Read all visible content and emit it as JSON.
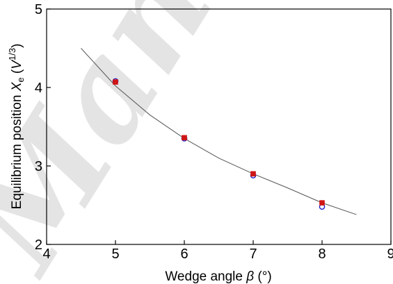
{
  "watermark": {
    "text": "Manuscript",
    "color": "#c8c8c8"
  },
  "chart_data": {
    "type": "scatter",
    "xlabel": "Wedge angle  β  (°)",
    "ylabel": "Equilibrium position  Xe  (V1/3)",
    "xlabel_parts": {
      "text": "Wedge angle  ",
      "symbol": "β",
      "unit": "  (°)"
    },
    "ylabel_parts": {
      "text": "Equilibrium position  ",
      "symbol": "X",
      "sub": "e",
      "unit_open": "  (",
      "unit_sym": "V",
      "unit_sup": "1/3",
      "unit_close": ")"
    },
    "xlim": [
      4,
      9
    ],
    "ylim": [
      2,
      5
    ],
    "xticks": [
      "4",
      "5",
      "6",
      "7",
      "8",
      "9"
    ],
    "yticks": [
      "2",
      "3",
      "4",
      "5"
    ],
    "grid": false,
    "series": [
      {
        "marker": "circle-open",
        "color": "#1f1fc8",
        "x": [
          5,
          6,
          7,
          8
        ],
        "y": [
          4.08,
          3.35,
          2.88,
          2.48
        ]
      },
      {
        "marker": "square-filled",
        "color": "#d01515",
        "x": [
          5,
          6,
          7,
          8
        ],
        "y": [
          4.07,
          3.36,
          2.9,
          2.53
        ]
      },
      {
        "marker": "line",
        "color": "#555555",
        "x": [
          4.5,
          5,
          5.5,
          6,
          6.5,
          7,
          7.5,
          8,
          8.5
        ],
        "y": [
          4.5,
          4.02,
          3.65,
          3.35,
          3.1,
          2.9,
          2.72,
          2.53,
          2.38
        ]
      }
    ]
  }
}
